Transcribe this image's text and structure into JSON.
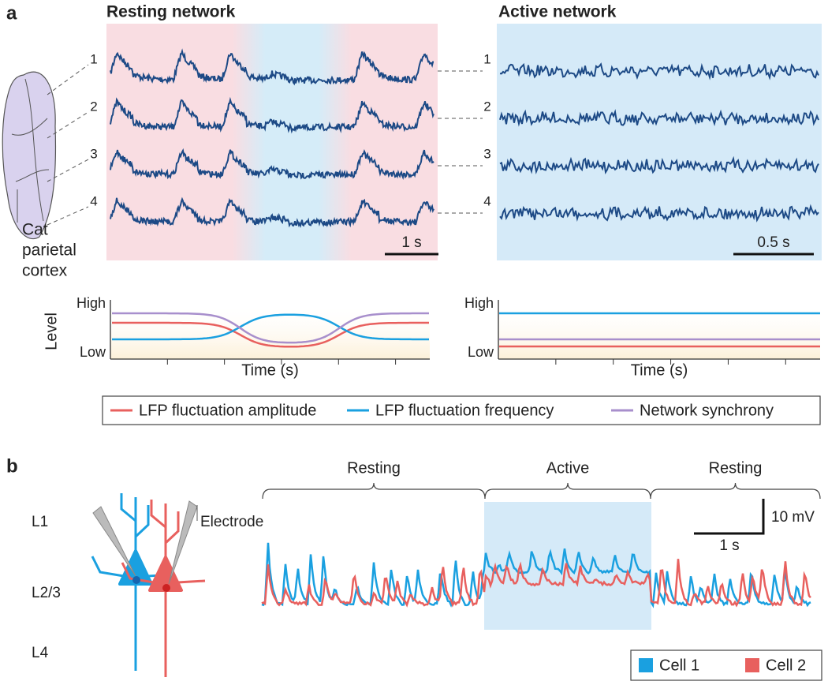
{
  "panel_a": {
    "label": "a",
    "resting_title": "Resting network",
    "active_title": "Active network",
    "region_label": [
      "Cat",
      "parietal",
      "cortex"
    ],
    "channels": [
      "1",
      "2",
      "3",
      "4"
    ],
    "resting_scale": "1 s",
    "active_scale": "0.5 s",
    "level_axis": {
      "ylabel": "Level",
      "high": "High",
      "low": "Low",
      "xlabel": "Time (s)"
    },
    "legend": [
      "LFP fluctuation amplitude",
      "LFP fluctuation frequency",
      "Network synchrony"
    ]
  },
  "panel_b": {
    "label": "b",
    "layers": [
      "L1",
      "L2/3",
      "L4"
    ],
    "electrode": "Electrode",
    "states": [
      "Resting",
      "Active",
      "Resting"
    ],
    "scale_v": "10 mV",
    "scale_t": "1 s",
    "legend": [
      "Cell 1",
      "Cell 2"
    ]
  }
}
